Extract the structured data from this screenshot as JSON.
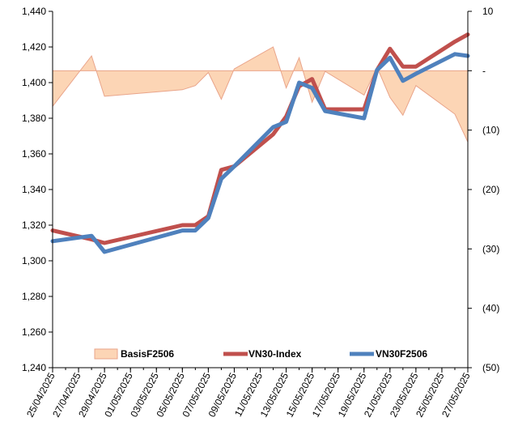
{
  "chart_data": {
    "type": "line",
    "title": "",
    "xlabel": "",
    "ylabel": "",
    "ylim_left": [
      1240,
      1440
    ],
    "ylim_right": [
      -50,
      10
    ],
    "grid": false,
    "legend_position": "bottom",
    "left_ticks": [
      "1,240",
      "1,260",
      "1,280",
      "1,300",
      "1,320",
      "1,340",
      "1,360",
      "1,380",
      "1,400",
      "1,420",
      "1,440"
    ],
    "right_ticks": [
      "(50)",
      "(40)",
      "(30)",
      "(20)",
      "(10)",
      "-",
      "10"
    ],
    "x_tick_labels": [
      "25/04/2025",
      "27/04/2025",
      "29/04/2025",
      "01/05/2025",
      "03/05/2025",
      "05/05/2025",
      "07/05/2025",
      "09/05/2025",
      "11/05/2025",
      "13/05/2025",
      "15/05/2025",
      "17/05/2025",
      "19/05/2025",
      "21/05/2025",
      "23/05/2025",
      "25/05/2025",
      "27/05/2025"
    ],
    "x_start": "25/04/2025",
    "x_end": "27/05/2025",
    "series": [
      {
        "name": "BasisF2506",
        "type": "area",
        "axis": "right",
        "color": "#fcd5b5",
        "edge_color": "#e9a48a",
        "x": [
          "25/04/2025",
          "28/04/2025",
          "29/04/2025",
          "05/05/2025",
          "06/05/2025",
          "07/05/2025",
          "08/05/2025",
          "09/05/2025",
          "12/05/2025",
          "13/05/2025",
          "14/05/2025",
          "15/05/2025",
          "16/05/2025",
          "19/05/2025",
          "20/05/2025",
          "21/05/2025",
          "22/05/2025",
          "23/05/2025",
          "26/05/2025",
          "27/05/2025"
        ],
        "values": [
          -6.0,
          2.5,
          -4.3,
          -3.2,
          -2.5,
          -0.3,
          -4.8,
          0.3,
          4.0,
          -2.9,
          2.2,
          -5.3,
          -0.1,
          -4.1,
          0.6,
          -4.5,
          -7.5,
          -2.5,
          -7.3,
          -12.0
        ]
      },
      {
        "name": "VN30-Index",
        "axis": "left",
        "color": "#c0504d",
        "x": [
          "25/04/2025",
          "28/04/2025",
          "29/04/2025",
          "05/05/2025",
          "06/05/2025",
          "07/05/2025",
          "08/05/2025",
          "09/05/2025",
          "12/05/2025",
          "13/05/2025",
          "14/05/2025",
          "15/05/2025",
          "16/05/2025",
          "19/05/2025",
          "20/05/2025",
          "21/05/2025",
          "22/05/2025",
          "23/05/2025",
          "26/05/2025",
          "27/05/2025"
        ],
        "values": [
          1317,
          1312,
          1310,
          1320,
          1320,
          1325,
          1351,
          1353,
          1371,
          1381,
          1398,
          1402,
          1385,
          1385,
          1407,
          1419,
          1409,
          1409,
          1423,
          1427
        ]
      },
      {
        "name": "VN30F2506",
        "axis": "left",
        "color": "#4f81bd",
        "x": [
          "25/04/2025",
          "28/04/2025",
          "29/04/2025",
          "05/05/2025",
          "06/05/2025",
          "07/05/2025",
          "08/05/2025",
          "09/05/2025",
          "12/05/2025",
          "13/05/2025",
          "14/05/2025",
          "15/05/2025",
          "16/05/2025",
          "19/05/2025",
          "20/05/2025",
          "21/05/2025",
          "22/05/2025",
          "23/05/2025",
          "26/05/2025",
          "27/05/2025"
        ],
        "values": [
          1311,
          1314,
          1305,
          1317,
          1317,
          1324,
          1346,
          1353,
          1375,
          1378,
          1400,
          1397,
          1384,
          1380,
          1407,
          1414,
          1401,
          1405,
          1416,
          1415
        ]
      }
    ]
  }
}
